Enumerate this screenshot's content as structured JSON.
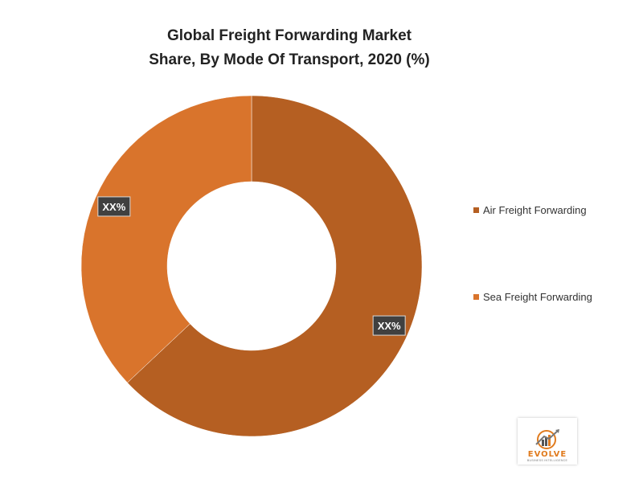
{
  "chart_data": {
    "type": "pie",
    "title_lines": [
      "Global Freight Forwarding Market",
      "Share, By  Mode Of Transport,  2020 (%)"
    ],
    "categories": [
      "Air Freight Forwarding",
      "Sea Freight Forwarding"
    ],
    "values": [
      63,
      37
    ],
    "data_labels": [
      "XX%",
      "XX%"
    ],
    "colors": [
      "#b55f22",
      "#d9742c"
    ],
    "donut": true,
    "legend_position": "right"
  },
  "logo": {
    "name": "EVOLVE",
    "tagline": "BUSINESS INTELLIGENCE"
  }
}
